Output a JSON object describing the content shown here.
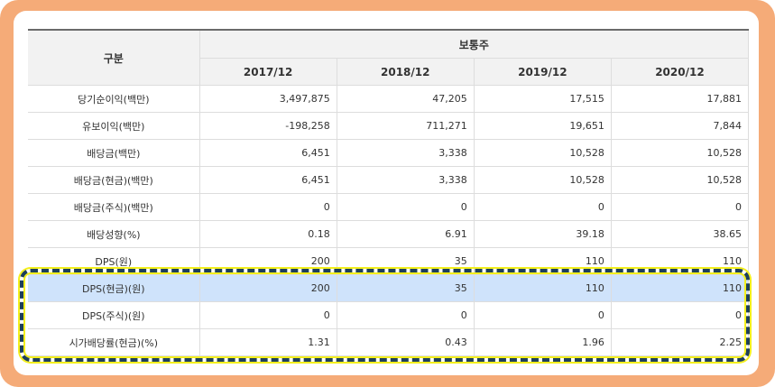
{
  "table": {
    "header_category": "구분",
    "header_group": "보통주",
    "years": [
      "2017/12",
      "2018/12",
      "2019/12",
      "2020/12"
    ],
    "rows": [
      {
        "label": "당기순이익(백만)",
        "values": [
          "3,497,875",
          "47,205",
          "17,515",
          "17,881"
        ],
        "highlight": false
      },
      {
        "label": "유보이익(백만)",
        "values": [
          "-198,258",
          "711,271",
          "19,651",
          "7,844"
        ],
        "highlight": false
      },
      {
        "label": "배당금(백만)",
        "values": [
          "6,451",
          "3,338",
          "10,528",
          "10,528"
        ],
        "highlight": false
      },
      {
        "label": "배당금(현금)(백만)",
        "values": [
          "6,451",
          "3,338",
          "10,528",
          "10,528"
        ],
        "highlight": false
      },
      {
        "label": "배당금(주식)(백만)",
        "values": [
          "0",
          "0",
          "0",
          "0"
        ],
        "highlight": false
      },
      {
        "label": "배당성향(%)",
        "values": [
          "0.18",
          "6.91",
          "39.18",
          "38.65"
        ],
        "highlight": false
      },
      {
        "label": "DPS(원)",
        "values": [
          "200",
          "35",
          "110",
          "110"
        ],
        "highlight": false
      },
      {
        "label": "DPS(현금)(원)",
        "values": [
          "200",
          "35",
          "110",
          "110"
        ],
        "highlight": true
      },
      {
        "label": "DPS(주식)(원)",
        "values": [
          "0",
          "0",
          "0",
          "0"
        ],
        "highlight": false
      },
      {
        "label": "시가배당률(현금)(%)",
        "values": [
          "1.31",
          "0.43",
          "1.96",
          "2.25"
        ],
        "highlight": false
      }
    ]
  },
  "colors": {
    "frame": "#f5ab78",
    "highlight_row": "#cfe3fb",
    "annotation_dash": "#1e3f5a",
    "annotation_glow": "#f3ef1c"
  }
}
